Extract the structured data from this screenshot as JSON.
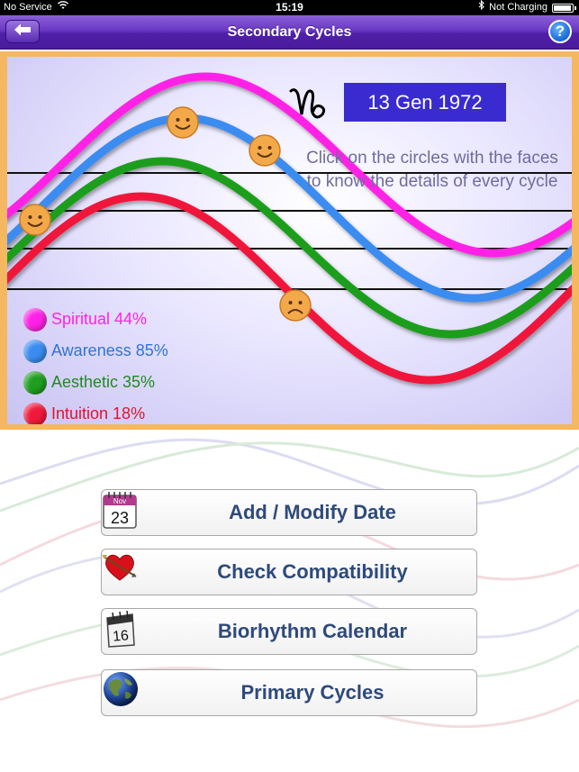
{
  "status_bar": {
    "carrier": "No Service",
    "time": "15:19",
    "charging": "Not Charging"
  },
  "nav": {
    "title": "Secondary Cycles",
    "help_label": "?"
  },
  "chart": {
    "date": "13 Gen 1972",
    "zodiac_icon": "capricorn-icon",
    "hint": "Click on the circles with the faces to know the details of every cycle"
  },
  "legend": [
    {
      "label": "Spiritual 44%",
      "color": "#ff22e6"
    },
    {
      "label": "Awareness 85%",
      "color": "#3a8cf0"
    },
    {
      "label": "Aesthetic 35%",
      "color": "#1f9e1f"
    },
    {
      "label": "Intuition 18%",
      "color": "#f0193b"
    }
  ],
  "menu": [
    {
      "label": "Add / Modify Date",
      "icon": "calendar-icon",
      "icon_text_month": "Nov",
      "icon_text_day": "23"
    },
    {
      "label": "Check Compatibility",
      "icon": "heart-arrow-icon"
    },
    {
      "label": "Biorhythm Calendar",
      "icon": "desk-calendar-icon",
      "icon_text_day": "16"
    },
    {
      "label": "Primary Cycles",
      "icon": "globe-icon"
    }
  ],
  "colors": {
    "accent": "#4f1fa8",
    "frame": "#f5b760",
    "date_box": "#3a2bd1",
    "button_text": "#2e4a7a"
  }
}
